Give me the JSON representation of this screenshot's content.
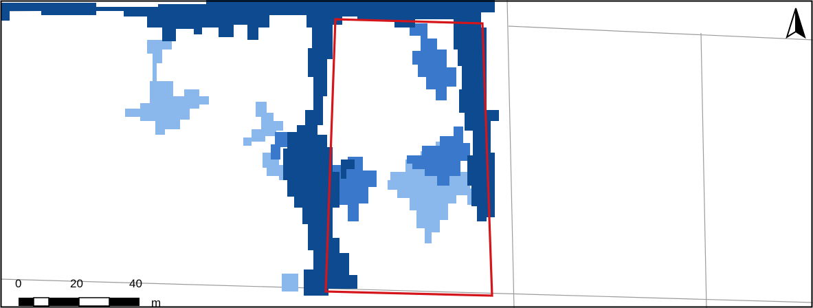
{
  "map": {
    "colors": {
      "background": "#ffffff",
      "water_deep": "#0d4a8f",
      "water_medium": "#3a78cc",
      "water_shallow": "#8ab8ec",
      "study_area_outline": "#d4151b",
      "parcel_lines": "#9b9b9b",
      "frame": "#000000"
    },
    "north_arrow": {
      "icon": "north-arrow-icon"
    },
    "scale_bar": {
      "tick_labels": [
        "0",
        "20",
        "40"
      ],
      "unit": "m"
    }
  }
}
